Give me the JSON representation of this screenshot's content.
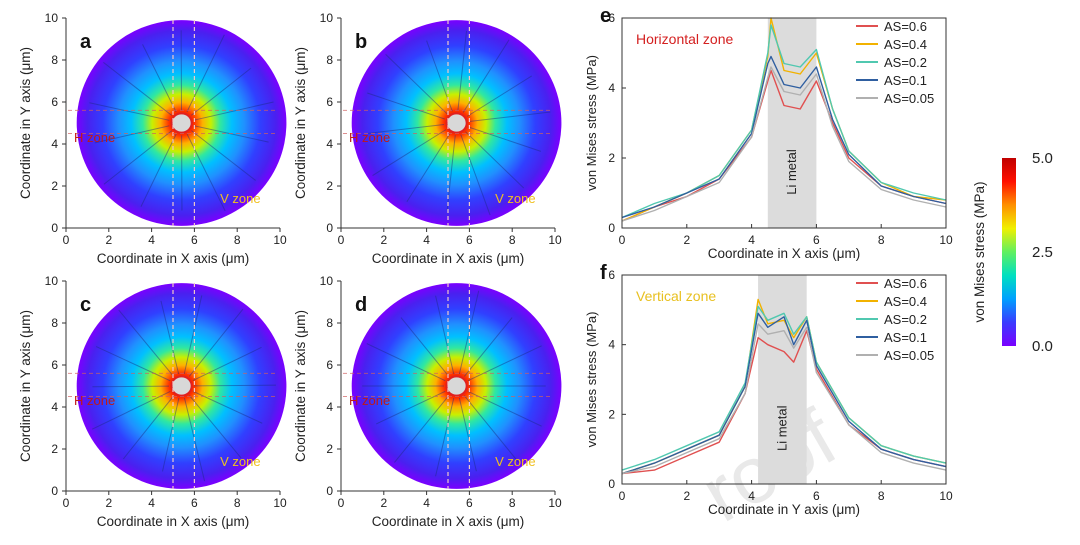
{
  "watermark": "roof",
  "colorbar": {
    "label": "von Mises stress (MPa)",
    "ticks": [
      {
        "v": 5.0,
        "t": "5.0"
      },
      {
        "v": 2.5,
        "t": "2.5"
      },
      {
        "v": 0.0,
        "t": "0.0"
      }
    ],
    "range": [
      0,
      5
    ],
    "colors": [
      "#7a00ff",
      "#3b3bff",
      "#00a0ff",
      "#00e0c0",
      "#60f060",
      "#f0f000",
      "#ff9000",
      "#ff1000",
      "#c00000"
    ]
  },
  "chart_data": [
    {
      "type": "heatmap",
      "panel": "a",
      "xlabel": "Coordinate in X axis (μm)",
      "ylabel": "Coordinate in Y axis (μm)",
      "xlim": [
        0,
        10
      ],
      "ylim": [
        0,
        10
      ],
      "xticks": [
        "0",
        "2",
        "4",
        "6",
        "8",
        "10"
      ],
      "yticks": [
        "0",
        "2",
        "4",
        "6",
        "8",
        "10"
      ],
      "center": [
        5.4,
        5.0
      ],
      "disc_radius": 4.9,
      "hole_radius": 0.45,
      "zone_lines": {
        "vertical_x": [
          5.0,
          6.0
        ],
        "horizontal_y": [
          4.5,
          5.6
        ]
      },
      "annotations": [
        "H zone",
        "V zone"
      ]
    },
    {
      "type": "heatmap",
      "panel": "b",
      "xlabel": "Coordinate in X axis (μm)",
      "ylabel": "Coordinate in Y axis (μm)",
      "xlim": [
        0,
        10
      ],
      "ylim": [
        0,
        10
      ],
      "xticks": [
        "0",
        "2",
        "4",
        "6",
        "8",
        "10"
      ],
      "yticks": [
        "0",
        "2",
        "4",
        "6",
        "8",
        "10"
      ],
      "center": [
        5.4,
        5.0
      ],
      "disc_radius": 4.9,
      "hole_radius": 0.45,
      "zone_lines": {
        "vertical_x": [
          5.0,
          6.0
        ],
        "horizontal_y": [
          4.5,
          5.6
        ]
      },
      "annotations": [
        "H zone",
        "V zone"
      ]
    },
    {
      "type": "heatmap",
      "panel": "c",
      "xlabel": "Coordinate in X axis (μm)",
      "ylabel": "Coordinate in Y axis (μm)",
      "xlim": [
        0,
        10
      ],
      "ylim": [
        0,
        10
      ],
      "xticks": [
        "0",
        "2",
        "4",
        "6",
        "8",
        "10"
      ],
      "yticks": [
        "0",
        "2",
        "4",
        "6",
        "8",
        "10"
      ],
      "center": [
        5.4,
        5.0
      ],
      "disc_radius": 4.9,
      "hole_radius": 0.45,
      "zone_lines": {
        "vertical_x": [
          5.0,
          6.0
        ],
        "horizontal_y": [
          4.5,
          5.6
        ]
      },
      "annotations": [
        "H zone",
        "V zone"
      ]
    },
    {
      "type": "heatmap",
      "panel": "d",
      "xlabel": "Coordinate in X axis (μm)",
      "ylabel": "Coordinate in Y axis (μm)",
      "xlim": [
        0,
        10
      ],
      "ylim": [
        0,
        10
      ],
      "xticks": [
        "0",
        "2",
        "4",
        "6",
        "8",
        "10"
      ],
      "yticks": [
        "0",
        "2",
        "4",
        "6",
        "8",
        "10"
      ],
      "center": [
        5.4,
        5.0
      ],
      "disc_radius": 4.9,
      "hole_radius": 0.45,
      "zone_lines": {
        "vertical_x": [
          5.0,
          6.0
        ],
        "horizontal_y": [
          4.5,
          5.6
        ]
      },
      "annotations": [
        "H zone",
        "V zone"
      ]
    },
    {
      "type": "line",
      "panel": "e",
      "title": "Horizontal zone",
      "title_color": "#d42020",
      "xlabel": "Coordinate in X axis (μm)",
      "ylabel": "von Mises stress (MPa)",
      "xlim": [
        0,
        10
      ],
      "ylim": [
        0,
        6
      ],
      "xticks": [
        "0",
        "2",
        "4",
        "6",
        "8",
        "10"
      ],
      "yticks": [
        "0",
        "2",
        "4",
        "6"
      ],
      "shaded_region": {
        "x": [
          4.5,
          6.0
        ],
        "label": "Li metal"
      },
      "legend_position": "top-right",
      "series": [
        {
          "name": "AS=0.6",
          "color": "#e05050",
          "x": [
            0,
            1,
            2,
            3,
            4,
            4.5,
            4.6,
            5,
            5.5,
            6,
            6.5,
            7,
            8,
            9,
            10
          ],
          "y": [
            0.2,
            0.6,
            0.9,
            1.4,
            2.6,
            4.2,
            4.5,
            3.5,
            3.4,
            4.2,
            3.0,
            2.0,
            1.2,
            0.9,
            0.7
          ]
        },
        {
          "name": "AS=0.4",
          "color": "#f2b200",
          "x": [
            0,
            1,
            2,
            3,
            4,
            4.5,
            4.6,
            5,
            5.5,
            6,
            6.5,
            7,
            8,
            9,
            10
          ],
          "y": [
            0.2,
            0.6,
            1.0,
            1.5,
            2.8,
            4.9,
            6.0,
            4.5,
            4.4,
            5.0,
            3.4,
            2.2,
            1.3,
            0.9,
            0.8
          ]
        },
        {
          "name": "AS=0.2",
          "color": "#50c8b0",
          "x": [
            0,
            1,
            2,
            3,
            4,
            4.5,
            4.6,
            5,
            5.5,
            6,
            6.5,
            7,
            8,
            9,
            10
          ],
          "y": [
            0.3,
            0.7,
            1.0,
            1.5,
            2.8,
            5.0,
            5.8,
            4.7,
            4.6,
            5.1,
            3.4,
            2.2,
            1.3,
            1.0,
            0.8
          ]
        },
        {
          "name": "AS=0.1",
          "color": "#2f5fa0",
          "x": [
            0,
            1,
            2,
            3,
            4,
            4.5,
            4.6,
            5,
            5.5,
            6,
            6.5,
            7,
            8,
            9,
            10
          ],
          "y": [
            0.3,
            0.6,
            1.0,
            1.4,
            2.7,
            4.7,
            4.9,
            4.1,
            4.0,
            4.6,
            3.1,
            2.1,
            1.2,
            0.9,
            0.7
          ]
        },
        {
          "name": "AS=0.05",
          "color": "#b0b0b0",
          "x": [
            0,
            1,
            2,
            3,
            4,
            4.5,
            4.6,
            5,
            5.5,
            6,
            6.5,
            7,
            8,
            9,
            10
          ],
          "y": [
            0.2,
            0.5,
            0.9,
            1.3,
            2.6,
            4.3,
            4.6,
            3.9,
            3.8,
            4.4,
            2.9,
            1.9,
            1.1,
            0.8,
            0.6
          ]
        }
      ]
    },
    {
      "type": "line",
      "panel": "f",
      "title": "Vertical zone",
      "title_color": "#e8c020",
      "xlabel": "Coordinate in Y axis (μm)",
      "ylabel": "von Mises stress (MPa)",
      "xlim": [
        0,
        10
      ],
      "ylim": [
        0,
        6
      ],
      "xticks": [
        "0",
        "2",
        "4",
        "6",
        "8",
        "10"
      ],
      "yticks": [
        "0",
        "2",
        "4",
        "6"
      ],
      "shaded_region": {
        "x": [
          4.2,
          5.7
        ],
        "label": "Li metal"
      },
      "legend_position": "top-right",
      "series": [
        {
          "name": "AS=0.6",
          "color": "#e05050",
          "x": [
            0,
            1,
            2,
            3,
            3.8,
            4.2,
            4.5,
            5,
            5.3,
            5.7,
            6,
            7,
            8,
            9,
            10
          ],
          "y": [
            0.3,
            0.4,
            0.8,
            1.2,
            2.6,
            4.2,
            4.0,
            3.8,
            3.5,
            4.4,
            3.3,
            1.7,
            1.0,
            0.7,
            0.5
          ]
        },
        {
          "name": "AS=0.4",
          "color": "#f2b200",
          "x": [
            0,
            1,
            2,
            3,
            3.8,
            4.2,
            4.5,
            5,
            5.3,
            5.7,
            6,
            7,
            8,
            9,
            10
          ],
          "y": [
            0.3,
            0.6,
            1.0,
            1.4,
            2.8,
            5.3,
            4.6,
            4.7,
            4.2,
            4.8,
            3.5,
            1.9,
            1.1,
            0.8,
            0.6
          ]
        },
        {
          "name": "AS=0.2",
          "color": "#50c8b0",
          "x": [
            0,
            1,
            2,
            3,
            3.8,
            4.2,
            4.5,
            5,
            5.3,
            5.7,
            6,
            7,
            8,
            9,
            10
          ],
          "y": [
            0.4,
            0.7,
            1.1,
            1.5,
            2.9,
            5.1,
            4.7,
            4.9,
            4.3,
            4.8,
            3.5,
            1.9,
            1.1,
            0.8,
            0.6
          ]
        },
        {
          "name": "AS=0.1",
          "color": "#2f5fa0",
          "x": [
            0,
            1,
            2,
            3,
            3.8,
            4.2,
            4.5,
            5,
            5.3,
            5.7,
            6,
            7,
            8,
            9,
            10
          ],
          "y": [
            0.3,
            0.6,
            1.0,
            1.4,
            2.8,
            4.9,
            4.5,
            4.8,
            4.0,
            4.7,
            3.4,
            1.8,
            1.0,
            0.7,
            0.5
          ]
        },
        {
          "name": "AS=0.05",
          "color": "#b0b0b0",
          "x": [
            0,
            1,
            2,
            3,
            3.8,
            4.2,
            4.5,
            5,
            5.3,
            5.7,
            6,
            7,
            8,
            9,
            10
          ],
          "y": [
            0.3,
            0.5,
            0.9,
            1.3,
            2.6,
            4.6,
            4.3,
            4.4,
            3.9,
            4.5,
            3.2,
            1.7,
            0.9,
            0.6,
            0.4
          ]
        }
      ]
    }
  ]
}
